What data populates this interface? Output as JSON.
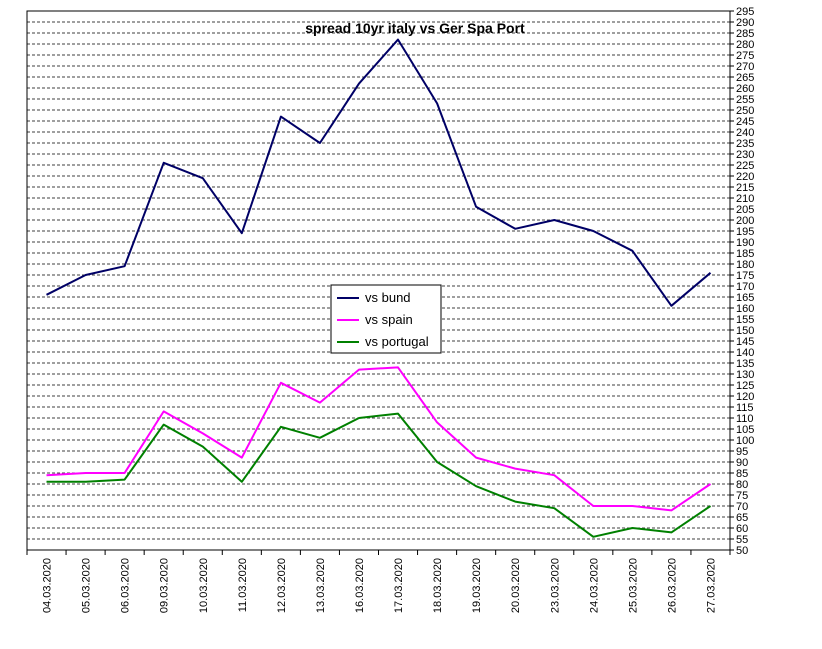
{
  "chart_data": {
    "type": "line",
    "title": "spread 10yr italy vs Ger Spa Port",
    "xlabel": "",
    "ylabel": "",
    "categories": [
      "04.03.2020",
      "05.03.2020",
      "06.03.2020",
      "09.03.2020",
      "10.03.2020",
      "11.03.2020",
      "12.03.2020",
      "13.03.2020",
      "16.03.2020",
      "17.03.2020",
      "18.03.2020",
      "19.03.2020",
      "20.03.2020",
      "23.03.2020",
      "24.03.2020",
      "25.03.2020",
      "26.03.2020",
      "27.03.2020"
    ],
    "ylim": [
      50,
      295
    ],
    "ytick_step": 5,
    "grid": true,
    "y_axis_side": "right",
    "legend_position": "center",
    "series": [
      {
        "name": "vs bund",
        "color": "#000066",
        "values": [
          166,
          175,
          179,
          226,
          219,
          194,
          247,
          235,
          262,
          282,
          253,
          206,
          196,
          200,
          195,
          186,
          161,
          176
        ]
      },
      {
        "name": "vs spain",
        "color": "#ff00ff",
        "values": [
          84,
          85,
          85,
          113,
          103,
          92,
          126,
          117,
          132,
          133,
          108,
          92,
          87,
          84,
          70,
          70,
          68,
          80
        ]
      },
      {
        "name": "vs portugal",
        "color": "#008000",
        "values": [
          81,
          81,
          82,
          107,
          97,
          81,
          106,
          101,
          110,
          112,
          90,
          79,
          72,
          69,
          56,
          60,
          58,
          70
        ]
      }
    ]
  }
}
